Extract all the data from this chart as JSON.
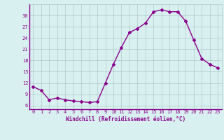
{
  "x": [
    0,
    1,
    2,
    3,
    4,
    5,
    6,
    7,
    8,
    9,
    10,
    11,
    12,
    13,
    14,
    15,
    16,
    17,
    18,
    19,
    20,
    21,
    22,
    23
  ],
  "y": [
    11.0,
    10.0,
    7.5,
    8.0,
    7.5,
    7.2,
    7.0,
    6.8,
    7.0,
    12.0,
    17.0,
    21.5,
    25.5,
    26.5,
    28.0,
    31.0,
    31.5,
    31.0,
    31.0,
    28.5,
    23.5,
    18.5,
    17.0,
    16.0
  ],
  "line_color": "#8B008B",
  "marker": "D",
  "marker_size": 2,
  "bg_color": "#d8f0f0",
  "grid_color": "#b0c8c8",
  "xlabel": "Windchill (Refroidissement éolien,°C)",
  "ylim": [
    5,
    33
  ],
  "xlim": [
    -0.5,
    23.5
  ],
  "yticks": [
    6,
    9,
    12,
    15,
    18,
    21,
    24,
    27,
    30
  ],
  "xticks": [
    0,
    1,
    2,
    3,
    4,
    5,
    6,
    7,
    8,
    9,
    10,
    11,
    12,
    13,
    14,
    15,
    16,
    17,
    18,
    19,
    20,
    21,
    22,
    23
  ],
  "label_color": "#8B008B",
  "tick_color": "#8B008B",
  "line_width": 1.0,
  "tick_fontsize": 5.0,
  "xlabel_fontsize": 5.5
}
